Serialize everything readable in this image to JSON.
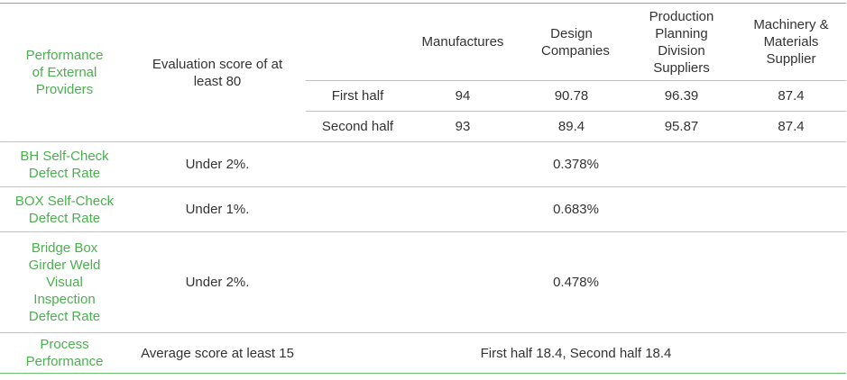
{
  "providers": {
    "metric_label": "Performance of External Providers",
    "target": "Evaluation score of at least 80",
    "columns": [
      "Manufactures",
      "Design Companies",
      "Production Planning Division Suppliers",
      "Machinery & Materials Supplier"
    ],
    "rows": [
      {
        "period": "First half",
        "values": [
          "94",
          "90.78",
          "96.39",
          "87.4"
        ]
      },
      {
        "period": "Second half",
        "values": [
          "93",
          "89.4",
          "95.87",
          "87.4"
        ]
      }
    ]
  },
  "defects": [
    {
      "metric": "BH Self-Check Defect Rate",
      "target": "Under 2%.",
      "result": "0.378%"
    },
    {
      "metric": "BOX Self-Check Defect Rate",
      "target": "Under 1%.",
      "result": "0.683%"
    },
    {
      "metric": "Bridge Box Girder Weld Visual Inspection Defect Rate",
      "target": "Under 2%.",
      "result": "0.478%"
    }
  ],
  "process": {
    "metric": "Process Performance",
    "target": "Average score at least 15",
    "result": "First half 18.4, Second half 18.4"
  }
}
